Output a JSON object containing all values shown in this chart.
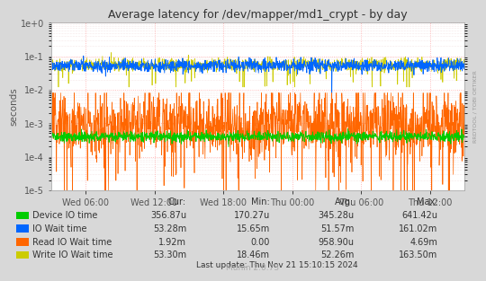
{
  "title": "Average latency for /dev/mapper/md1_crypt - by day",
  "ylabel": "seconds",
  "right_label": "RRDTOOL / TOBI OETIKER",
  "bg_color": "#d8d8d8",
  "plot_bg_color": "#ffffff",
  "grid_color_major": "#ffaaaa",
  "grid_color_minor": "#e8c8c8",
  "tick_color": "#555555",
  "xtick_labels": [
    "Wed 06:00",
    "Wed 12:00",
    "Wed 18:00",
    "Thu 00:00",
    "Thu 06:00",
    "Thu 12:00"
  ],
  "series": {
    "device_io": {
      "color": "#00cc00",
      "label": "Device IO time",
      "cur": "356.87u",
      "min": "170.27u",
      "avg": "345.28u",
      "max": "641.42u"
    },
    "io_wait": {
      "color": "#0066ff",
      "label": "IO Wait time",
      "cur": "53.28m",
      "min": "15.65m",
      "avg": "51.57m",
      "max": "161.02m"
    },
    "read_io": {
      "color": "#ff6600",
      "label": "Read IO Wait time",
      "cur": "1.92m",
      "min": "0.00",
      "avg": "958.90u",
      "max": "4.69m"
    },
    "write_io": {
      "color": "#cccc00",
      "label": "Write IO Wait time",
      "cur": "53.30m",
      "min": "18.46m",
      "avg": "52.26m",
      "max": "163.50m"
    }
  },
  "footer_cur": "Cur:",
  "footer_min": "Min:",
  "footer_avg": "Avg:",
  "footer_max": "Max:",
  "last_update": "Last update: Thu Nov 21 15:10:15 2024",
  "munin_version": "Munin 2.0.73"
}
